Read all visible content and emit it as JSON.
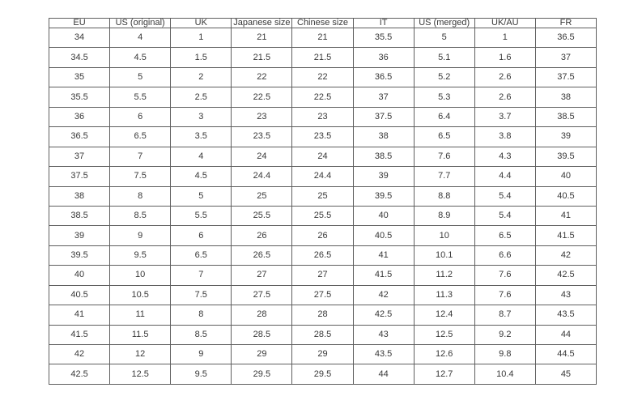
{
  "page": {
    "background": "#ffffff",
    "border_color": "#5f5f5f",
    "text_color": "#383838"
  },
  "table": {
    "title": "shoe-size-conversion-table",
    "columns": [
      "EU",
      "US (original)",
      "UK",
      "Japanese size",
      "Chinese size",
      "IT",
      "US (merged)",
      "UK/AU",
      "FR"
    ],
    "rows": [
      [
        "34",
        "4",
        "1",
        "21",
        "21",
        "35.5",
        "5",
        "1",
        "36.5"
      ],
      [
        "34.5",
        "4.5",
        "1.5",
        "21.5",
        "21.5",
        "36",
        "5.1",
        "1.6",
        "37"
      ],
      [
        "35",
        "5",
        "2",
        "22",
        "22",
        "36.5",
        "5.2",
        "2.6",
        "37.5"
      ],
      [
        "35.5",
        "5.5",
        "2.5",
        "22.5",
        "22.5",
        "37",
        "5.3",
        "2.6",
        "38"
      ],
      [
        "36",
        "6",
        "3",
        "23",
        "23",
        "37.5",
        "6.4",
        "3.7",
        "38.5"
      ],
      [
        "36.5",
        "6.5",
        "3.5",
        "23.5",
        "23.5",
        "38",
        "6.5",
        "3.8",
        "39"
      ],
      [
        "37",
        "7",
        "4",
        "24",
        "24",
        "38.5",
        "7.6",
        "4.3",
        "39.5"
      ],
      [
        "37.5",
        "7.5",
        "4.5",
        "24.4",
        "24.4",
        "39",
        "7.7",
        "4.4",
        "40"
      ],
      [
        "38",
        "8",
        "5",
        "25",
        "25",
        "39.5",
        "8.8",
        "5.4",
        "40.5"
      ],
      [
        "38.5",
        "8.5",
        "5.5",
        "25.5",
        "25.5",
        "40",
        "8.9",
        "5.4",
        "41"
      ],
      [
        "39",
        "9",
        "6",
        "26",
        "26",
        "40.5",
        "10",
        "6.5",
        "41.5"
      ],
      [
        "39.5",
        "9.5",
        "6.5",
        "26.5",
        "26.5",
        "41",
        "10.1",
        "6.6",
        "42"
      ],
      [
        "40",
        "10",
        "7",
        "27",
        "27",
        "41.5",
        "11.2",
        "7.6",
        "42.5"
      ],
      [
        "40.5",
        "10.5",
        "7.5",
        "27.5",
        "27.5",
        "42",
        "11.3",
        "7.6",
        "43"
      ],
      [
        "41",
        "11",
        "8",
        "28",
        "28",
        "42.5",
        "12.4",
        "8.7",
        "43.5"
      ],
      [
        "41.5",
        "11.5",
        "8.5",
        "28.5",
        "28.5",
        "43",
        "12.5",
        "9.2",
        "44"
      ],
      [
        "42",
        "12",
        "9",
        "29",
        "29",
        "43.5",
        "12.6",
        "9.8",
        "44.5"
      ],
      [
        "42.5",
        "12.5",
        "9.5",
        "29.5",
        "29.5",
        "44",
        "12.7",
        "10.4",
        "45"
      ]
    ]
  }
}
